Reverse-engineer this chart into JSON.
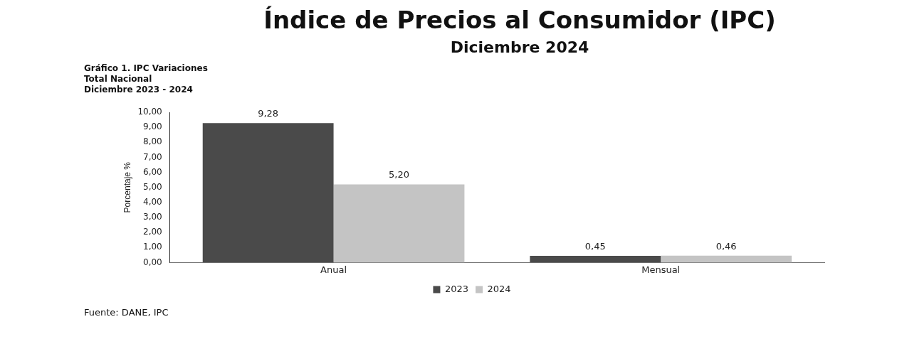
{
  "chart_data": {
    "type": "bar",
    "title": "Índice de Precios al Consumidor (IPC)",
    "subtitle": "Diciembre 2024",
    "annotations": [
      "Gráfico 1. IPC Variaciones",
      "Total Nacional",
      "Diciembre 2023 - 2024",
      "Fuente: DANE, IPC"
    ],
    "ylabel": "Porcentaje %",
    "categories": [
      "Anual",
      "Mensual"
    ],
    "series": [
      {
        "name": "2023",
        "color": "#4a4a4a",
        "values": [
          9.28,
          0.45
        ],
        "value_labels": [
          "9,28",
          "0,45"
        ]
      },
      {
        "name": "2024",
        "color": "#c4c4c4",
        "values": [
          5.2,
          0.46
        ],
        "value_labels": [
          "5,20",
          "0,46"
        ]
      }
    ],
    "ylim": [
      0,
      10
    ],
    "yticks": [
      {
        "value": 0,
        "label": "0,00"
      },
      {
        "value": 1,
        "label": "1,00"
      },
      {
        "value": 2,
        "label": "2,00"
      },
      {
        "value": 3,
        "label": "3,00"
      },
      {
        "value": 4,
        "label": "4,00"
      },
      {
        "value": 5,
        "label": "5,00"
      },
      {
        "value": 6,
        "label": "6,00"
      },
      {
        "value": 7,
        "label": "7,00"
      },
      {
        "value": 8,
        "label": "8,00"
      },
      {
        "value": 9,
        "label": "9,00"
      },
      {
        "value": 10,
        "label": "10,00"
      }
    ],
    "grid": false,
    "legend": "bottom"
  }
}
